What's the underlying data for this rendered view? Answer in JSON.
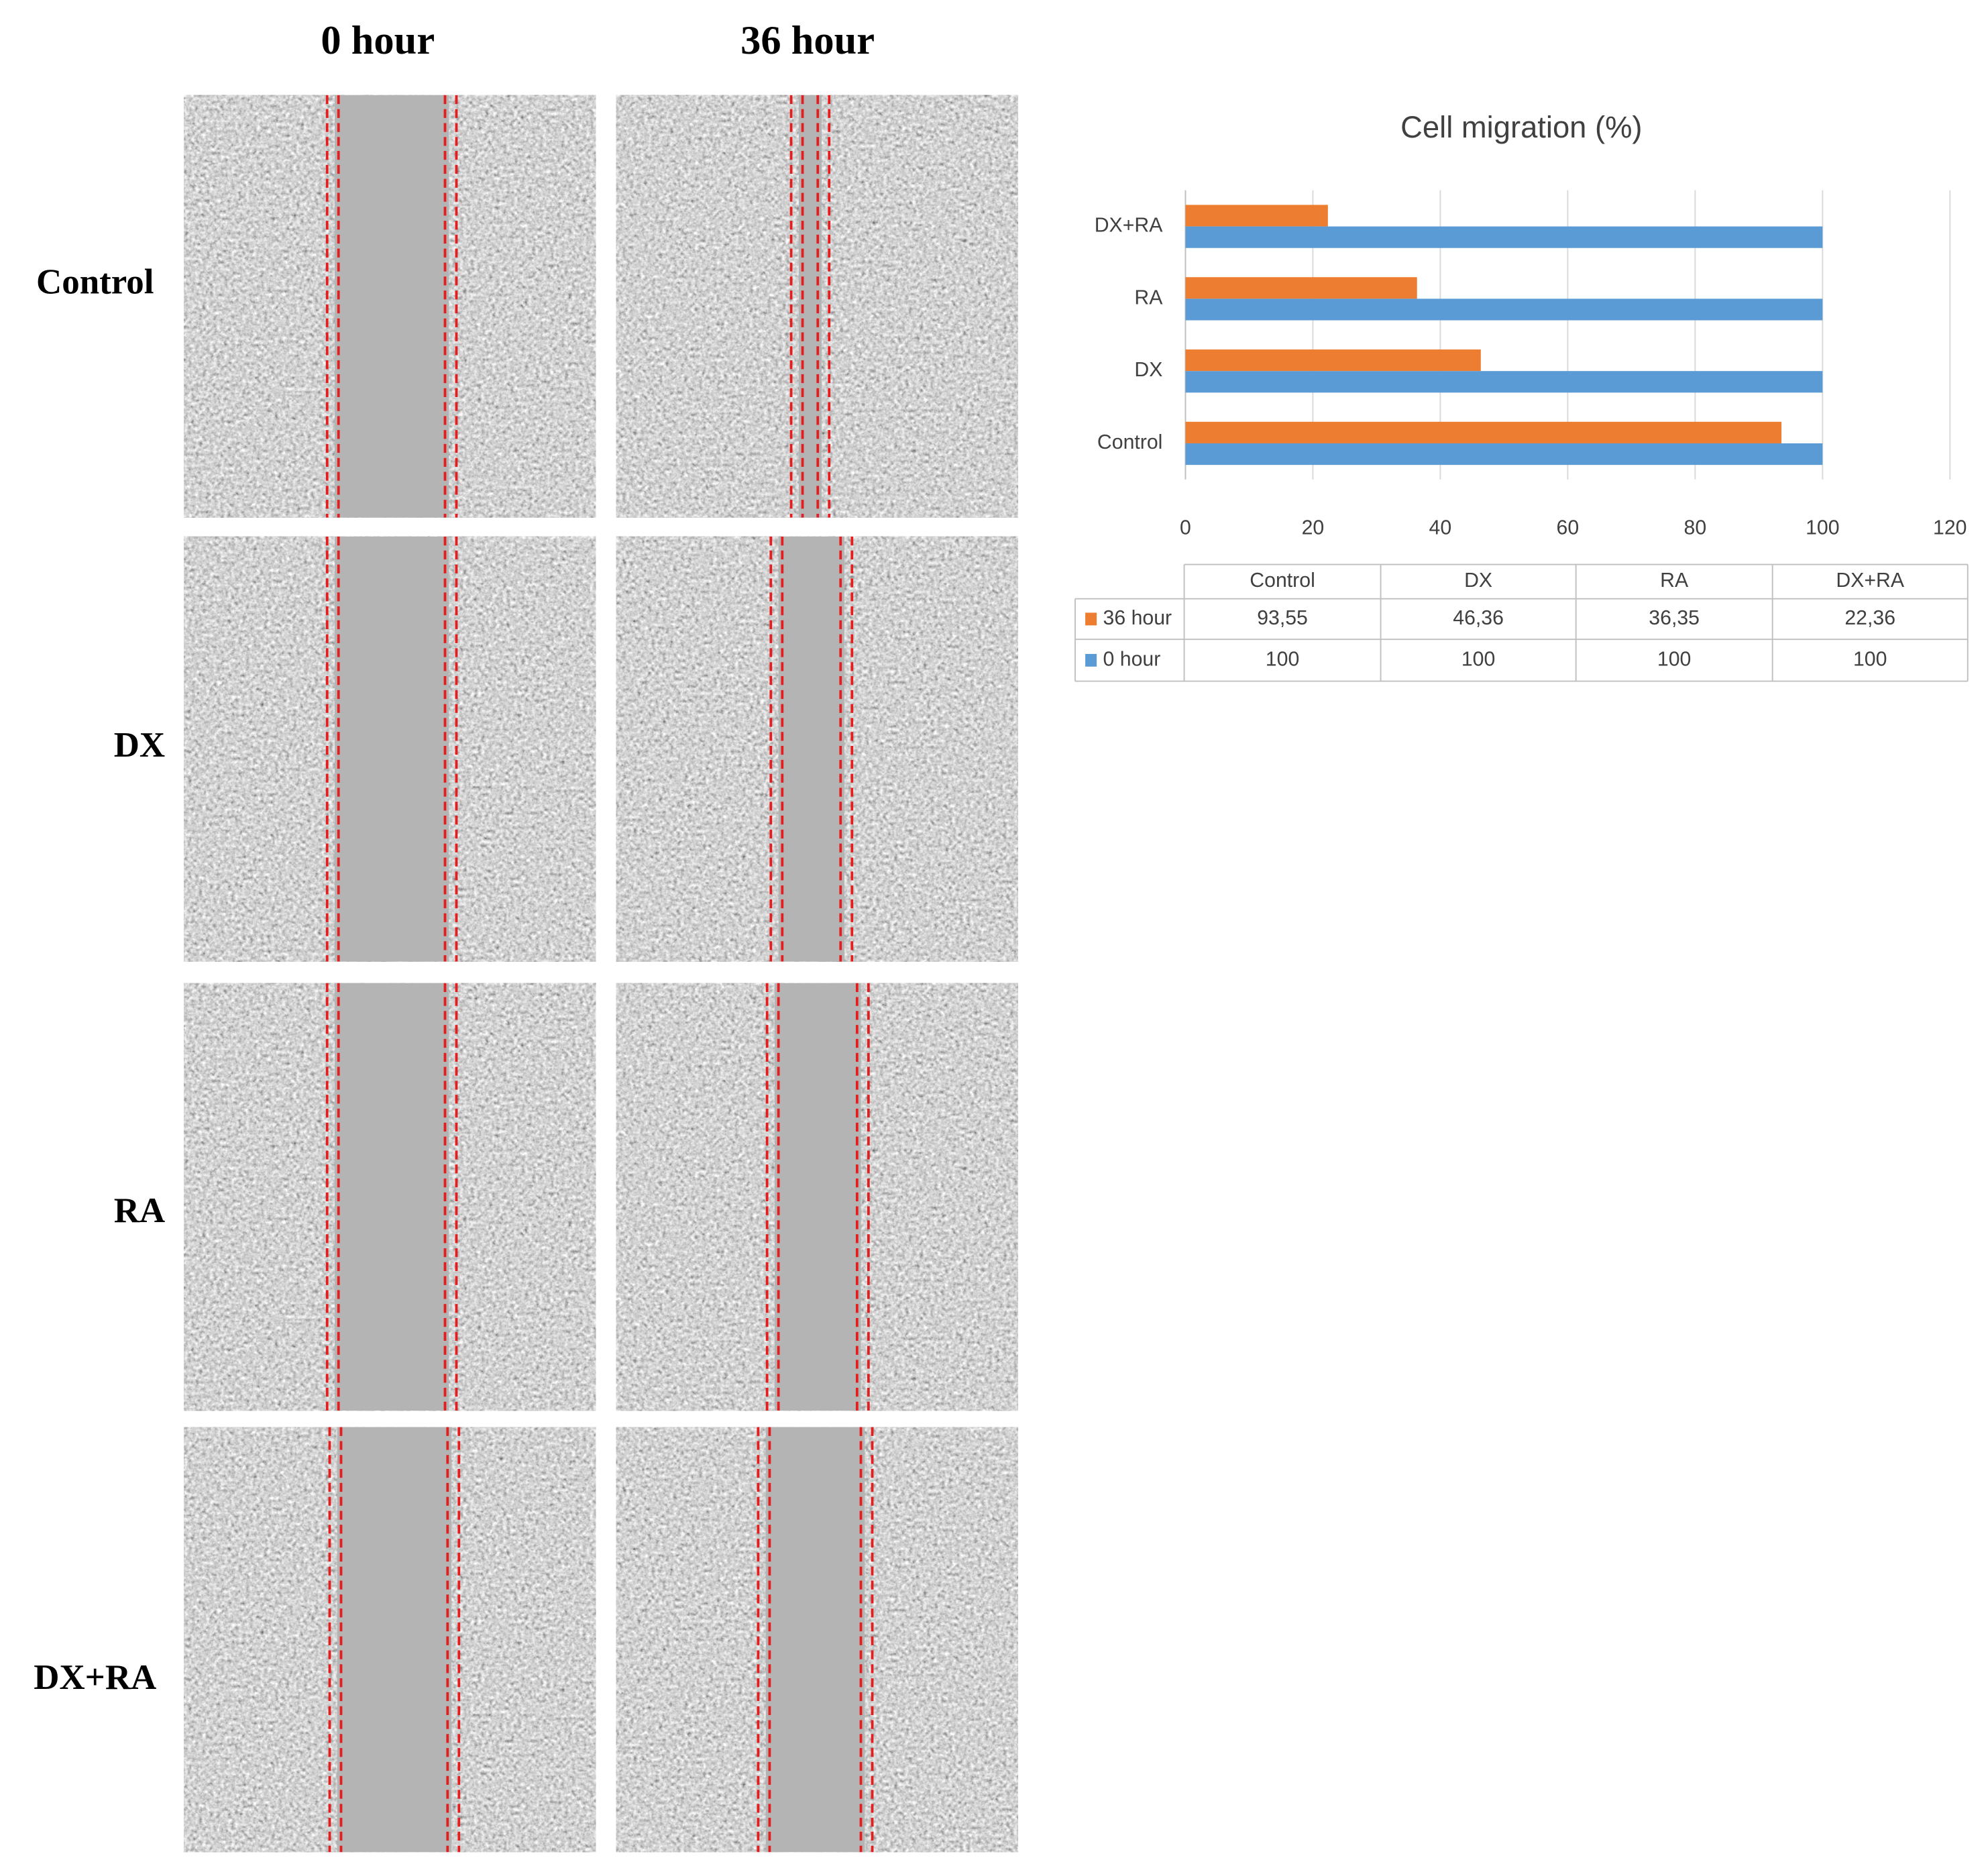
{
  "figure": {
    "column_titles": [
      "0 hour",
      "36 hour"
    ],
    "row_labels": [
      "Control",
      "DX",
      "RA",
      "DX+RA"
    ]
  },
  "chart_data": {
    "type": "bar",
    "orientation": "horizontal",
    "title": "Cell migration (%)",
    "categories": [
      "Control",
      "DX",
      "RA",
      "DX+RA"
    ],
    "series": [
      {
        "name": "36 hour",
        "color": "#ed7d31",
        "values": [
          93.55,
          46.36,
          36.35,
          22.36
        ],
        "value_labels": [
          "93,55",
          "46,36",
          "36,35",
          "22,36"
        ]
      },
      {
        "name": "0 hour",
        "color": "#5b9bd5",
        "values": [
          100,
          100,
          100,
          100
        ]
      }
    ],
    "xlim": [
      0,
      120
    ],
    "xticks": [
      0,
      20,
      40,
      60,
      80,
      100,
      120
    ],
    "grid": true,
    "data_table": true
  }
}
